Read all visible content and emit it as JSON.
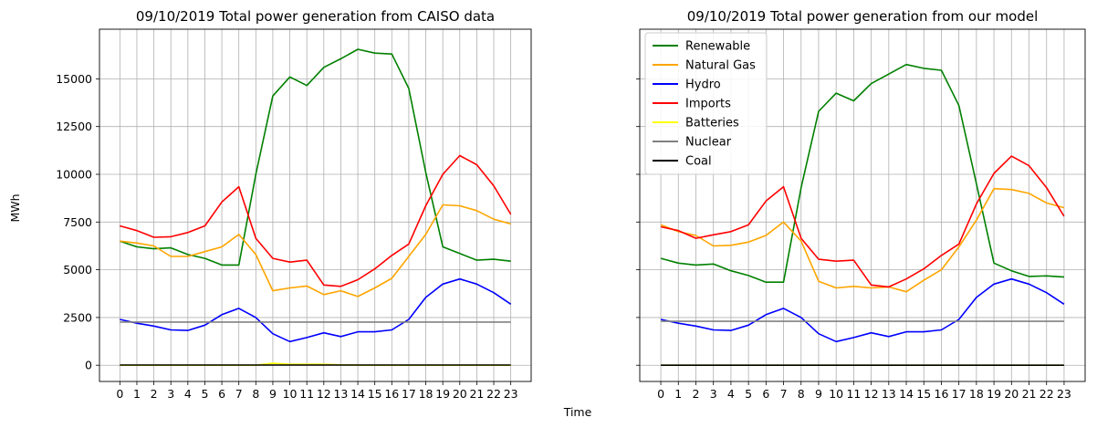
{
  "figure": {
    "xlabel": "Time",
    "ylabel": "MWh"
  },
  "chart_data": [
    {
      "type": "line",
      "title": "09/10/2019 Total power generation from CAISO data",
      "xlabel": "Time",
      "ylabel": "MWh",
      "x": [
        0,
        1,
        2,
        3,
        4,
        5,
        6,
        7,
        8,
        9,
        10,
        11,
        12,
        13,
        14,
        15,
        16,
        17,
        18,
        19,
        20,
        21,
        22,
        23
      ],
      "xlim": [
        -1.2,
        24.2
      ],
      "ylim": [
        -850,
        17600
      ],
      "yticks": [
        0,
        2500,
        5000,
        7500,
        10000,
        12500,
        15000
      ],
      "grid": true,
      "series": [
        {
          "name": "Renewable",
          "color": "#008000",
          "values": [
            6500,
            6200,
            6100,
            6150,
            5800,
            5600,
            5250,
            5250,
            10000,
            14100,
            15100,
            14650,
            15600,
            16050,
            16550,
            16350,
            16300,
            14500,
            10100,
            6200,
            5850,
            5500,
            5550,
            5450
          ]
        },
        {
          "name": "Natural Gas",
          "color": "#FFA500",
          "values": [
            6500,
            6400,
            6250,
            5700,
            5700,
            5950,
            6200,
            6850,
            5800,
            3900,
            4050,
            4150,
            3700,
            3900,
            3600,
            4050,
            4550,
            5700,
            6850,
            8400,
            8350,
            8100,
            7650,
            7400
          ]
        },
        {
          "name": "Hydro",
          "color": "#0000FF",
          "values": [
            2400,
            2200,
            2050,
            1850,
            1820,
            2100,
            2650,
            2980,
            2500,
            1650,
            1240,
            1450,
            1700,
            1500,
            1750,
            1750,
            1850,
            2400,
            3550,
            4250,
            4520,
            4250,
            3800,
            3200
          ]
        },
        {
          "name": "Imports",
          "color": "#FF0000",
          "values": [
            7300,
            7050,
            6700,
            6730,
            6950,
            7300,
            8550,
            9350,
            6650,
            5600,
            5400,
            5500,
            4200,
            4130,
            4480,
            5050,
            5750,
            6350,
            8350,
            10000,
            10980,
            10500,
            9400,
            7900
          ]
        },
        {
          "name": "Batteries",
          "color": "#FFFF00",
          "values": [
            0,
            0,
            0,
            0,
            0,
            0,
            0,
            0,
            0,
            100,
            50,
            50,
            50,
            20,
            0,
            0,
            0,
            0,
            0,
            0,
            0,
            0,
            0,
            0
          ]
        },
        {
          "name": "Nuclear",
          "color": "#808080",
          "values": [
            2260,
            2260,
            2260,
            2260,
            2260,
            2260,
            2260,
            2260,
            2260,
            2260,
            2260,
            2260,
            2260,
            2260,
            2260,
            2260,
            2260,
            2260,
            2260,
            2260,
            2260,
            2260,
            2260,
            2260
          ]
        },
        {
          "name": "Coal",
          "color": "#000000",
          "values": [
            10,
            10,
            10,
            10,
            10,
            10,
            10,
            10,
            10,
            10,
            10,
            10,
            10,
            10,
            10,
            10,
            10,
            10,
            10,
            10,
            10,
            10,
            10,
            10
          ]
        }
      ]
    },
    {
      "type": "line",
      "title": "09/10/2019 Total power generation from our model",
      "xlabel": "Time",
      "ylabel": "MWh",
      "x": [
        0,
        1,
        2,
        3,
        4,
        5,
        6,
        7,
        8,
        9,
        10,
        11,
        12,
        13,
        14,
        15,
        16,
        17,
        18,
        19,
        20,
        21,
        22,
        23
      ],
      "xlim": [
        -1.2,
        24.2
      ],
      "ylim": [
        -850,
        17600
      ],
      "yticks": [
        0,
        2500,
        5000,
        7500,
        10000,
        12500,
        15000
      ],
      "grid": true,
      "legend": "top-left",
      "series": [
        {
          "name": "Renewable",
          "color": "#008000",
          "values": [
            5600,
            5350,
            5250,
            5300,
            4950,
            4700,
            4350,
            4350,
            9300,
            13300,
            14250,
            13850,
            14750,
            15250,
            15750,
            15550,
            15450,
            13600,
            9500,
            5350,
            4950,
            4650,
            4680,
            4620
          ]
        },
        {
          "name": "Natural Gas",
          "color": "#FFA500",
          "values": [
            7350,
            7000,
            6800,
            6250,
            6280,
            6450,
            6800,
            7500,
            6500,
            4400,
            4050,
            4130,
            4050,
            4100,
            3850,
            4450,
            5000,
            6200,
            7600,
            9250,
            9200,
            9000,
            8500,
            8250
          ]
        },
        {
          "name": "Hydro",
          "color": "#0000FF",
          "values": [
            2400,
            2200,
            2050,
            1850,
            1820,
            2100,
            2650,
            2980,
            2500,
            1650,
            1240,
            1450,
            1700,
            1500,
            1750,
            1750,
            1850,
            2400,
            3550,
            4250,
            4520,
            4250,
            3800,
            3200
          ]
        },
        {
          "name": "Imports",
          "color": "#FF0000",
          "values": [
            7250,
            7050,
            6650,
            6830,
            7000,
            7350,
            8600,
            9350,
            6650,
            5550,
            5450,
            5500,
            4200,
            4100,
            4520,
            5050,
            5750,
            6350,
            8450,
            10050,
            10950,
            10450,
            9300,
            7800
          ]
        },
        {
          "name": "Batteries",
          "color": "#FFFF00",
          "values": [
            0,
            0,
            0,
            0,
            0,
            0,
            0,
            0,
            0,
            0,
            0,
            0,
            0,
            0,
            0,
            0,
            0,
            0,
            0,
            0,
            0,
            0,
            0,
            0
          ]
        },
        {
          "name": "Nuclear",
          "color": "#808080",
          "values": [
            2300,
            2300,
            2300,
            2300,
            2300,
            2300,
            2300,
            2300,
            2300,
            2300,
            2300,
            2300,
            2300,
            2300,
            2300,
            2300,
            2300,
            2300,
            2300,
            2300,
            2300,
            2300,
            2300,
            2300
          ]
        },
        {
          "name": "Coal",
          "color": "#000000",
          "values": [
            0,
            0,
            0,
            0,
            0,
            0,
            0,
            0,
            0,
            0,
            0,
            0,
            0,
            0,
            0,
            0,
            0,
            0,
            0,
            0,
            0,
            0,
            0,
            0
          ]
        }
      ]
    }
  ]
}
